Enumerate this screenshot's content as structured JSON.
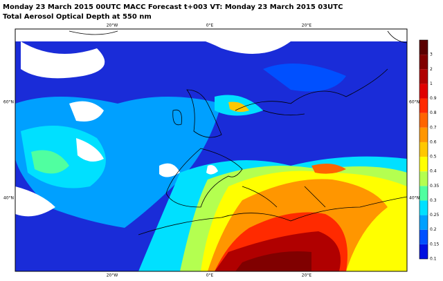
{
  "header": {
    "line1": "Monday 23 March 2015 00UTC MACC Forecast t+003 VT: Monday 23 March 2015 03UTC",
    "line2": "Total Aerosol Optical Depth at 550 nm"
  },
  "map": {
    "top_labels": [
      "20°W",
      "0°E",
      "20°E"
    ],
    "bottom_labels": [
      "20°W",
      "0°E",
      "20°E"
    ],
    "left_labels": [
      "60°N",
      "40°N"
    ],
    "right_labels": [
      "60°N",
      "40°N"
    ]
  },
  "colorbar": {
    "labels": [
      "0.1",
      "0.15",
      "0.2",
      "0.25",
      "0.3",
      "0.35",
      "0.4",
      "0.5",
      "0.6",
      "0.7",
      "0.8",
      "0.9",
      "1",
      "2",
      "3"
    ],
    "colors": [
      "#0010e0",
      "#0050ff",
      "#00a0ff",
      "#00e0ff",
      "#50ffa0",
      "#b4ff50",
      "#ffff00",
      "#ffc800",
      "#ff9600",
      "#ff6400",
      "#ff2a00",
      "#e00000",
      "#b00000",
      "#800000",
      "#5a0000"
    ]
  }
}
